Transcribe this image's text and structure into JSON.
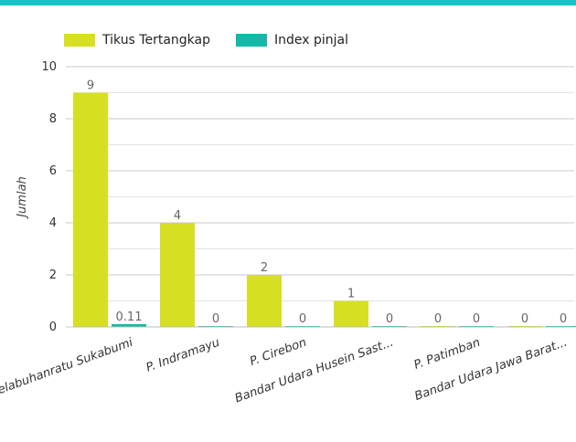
{
  "chart_data": {
    "type": "bar",
    "categories": [
      "Pelabuhanratu Sukabumi",
      "P. Indramayu",
      "P. Cirebon",
      "Bandar Udara Husein Sast...",
      "P. Patimban",
      "Bandar Udara Jawa Barat..."
    ],
    "series": [
      {
        "name": "Tikus Tertangkap",
        "values": [
          9,
          4,
          2,
          1,
          0,
          0
        ]
      },
      {
        "name": "Index pinjal",
        "values": [
          0.11,
          0,
          0,
          0,
          0,
          0
        ]
      }
    ],
    "value_labels": [
      [
        "9",
        "4",
        "2",
        "1",
        "0",
        "0"
      ],
      [
        "0.11",
        "0",
        "0",
        "0",
        "0",
        "0"
      ]
    ],
    "ylabel": "Jumlah",
    "xlabel": "",
    "ylim": [
      0,
      10
    ],
    "yticks": [
      0,
      2,
      4,
      6,
      8,
      10
    ],
    "grid": true,
    "legend_position": "top-left",
    "colors": [
      "#d7df23",
      "#14b8a6"
    ]
  }
}
